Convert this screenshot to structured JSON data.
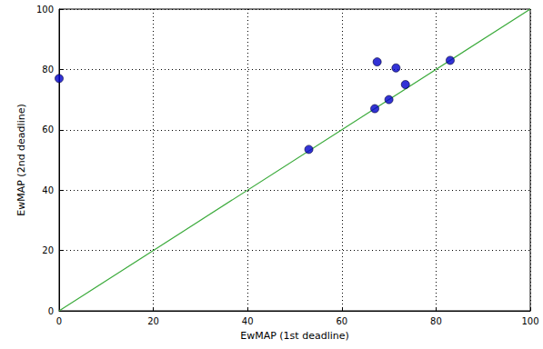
{
  "chart_data": {
    "type": "scatter",
    "xlabel": "EwMAP (1st deadline)",
    "ylabel": "EwMAP (2nd deadline)",
    "xlim": [
      0,
      100
    ],
    "ylim": [
      0,
      100
    ],
    "xticks": [
      0,
      20,
      40,
      60,
      80,
      100
    ],
    "yticks": [
      0,
      20,
      40,
      60,
      80,
      100
    ],
    "grid": true,
    "series": [
      {
        "type": "scatter",
        "color": "#0000cc",
        "marker": "circle",
        "x": [
          0,
          53,
          67,
          67.5,
          70,
          71.5,
          73.5,
          83
        ],
        "values": [
          77,
          53.5,
          67,
          82.5,
          70,
          80.5,
          75,
          83
        ]
      },
      {
        "type": "line",
        "color": "#3aaa3a",
        "line_style": "solid",
        "x": [
          0,
          100
        ],
        "values": [
          0,
          100
        ]
      }
    ]
  }
}
